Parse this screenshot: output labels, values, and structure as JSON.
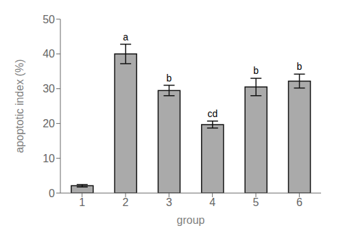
{
  "chart_data": {
    "type": "bar",
    "categories": [
      "1",
      "2",
      "3",
      "4",
      "5",
      "6"
    ],
    "values": [
      2.1,
      40.0,
      29.5,
      19.7,
      30.5,
      32.2
    ],
    "errors": [
      0.35,
      2.8,
      1.5,
      1.0,
      2.5,
      2.0
    ],
    "annotations": [
      null,
      "a",
      "b",
      "cd",
      "b",
      "b"
    ],
    "color": "#aaaaaa",
    "xlabel": "group",
    "ylabel": "apoptotic index (%)",
    "ylim": [
      0,
      50
    ],
    "yticks": [
      0,
      10,
      20,
      30,
      40,
      50
    ],
    "grid": false
  }
}
